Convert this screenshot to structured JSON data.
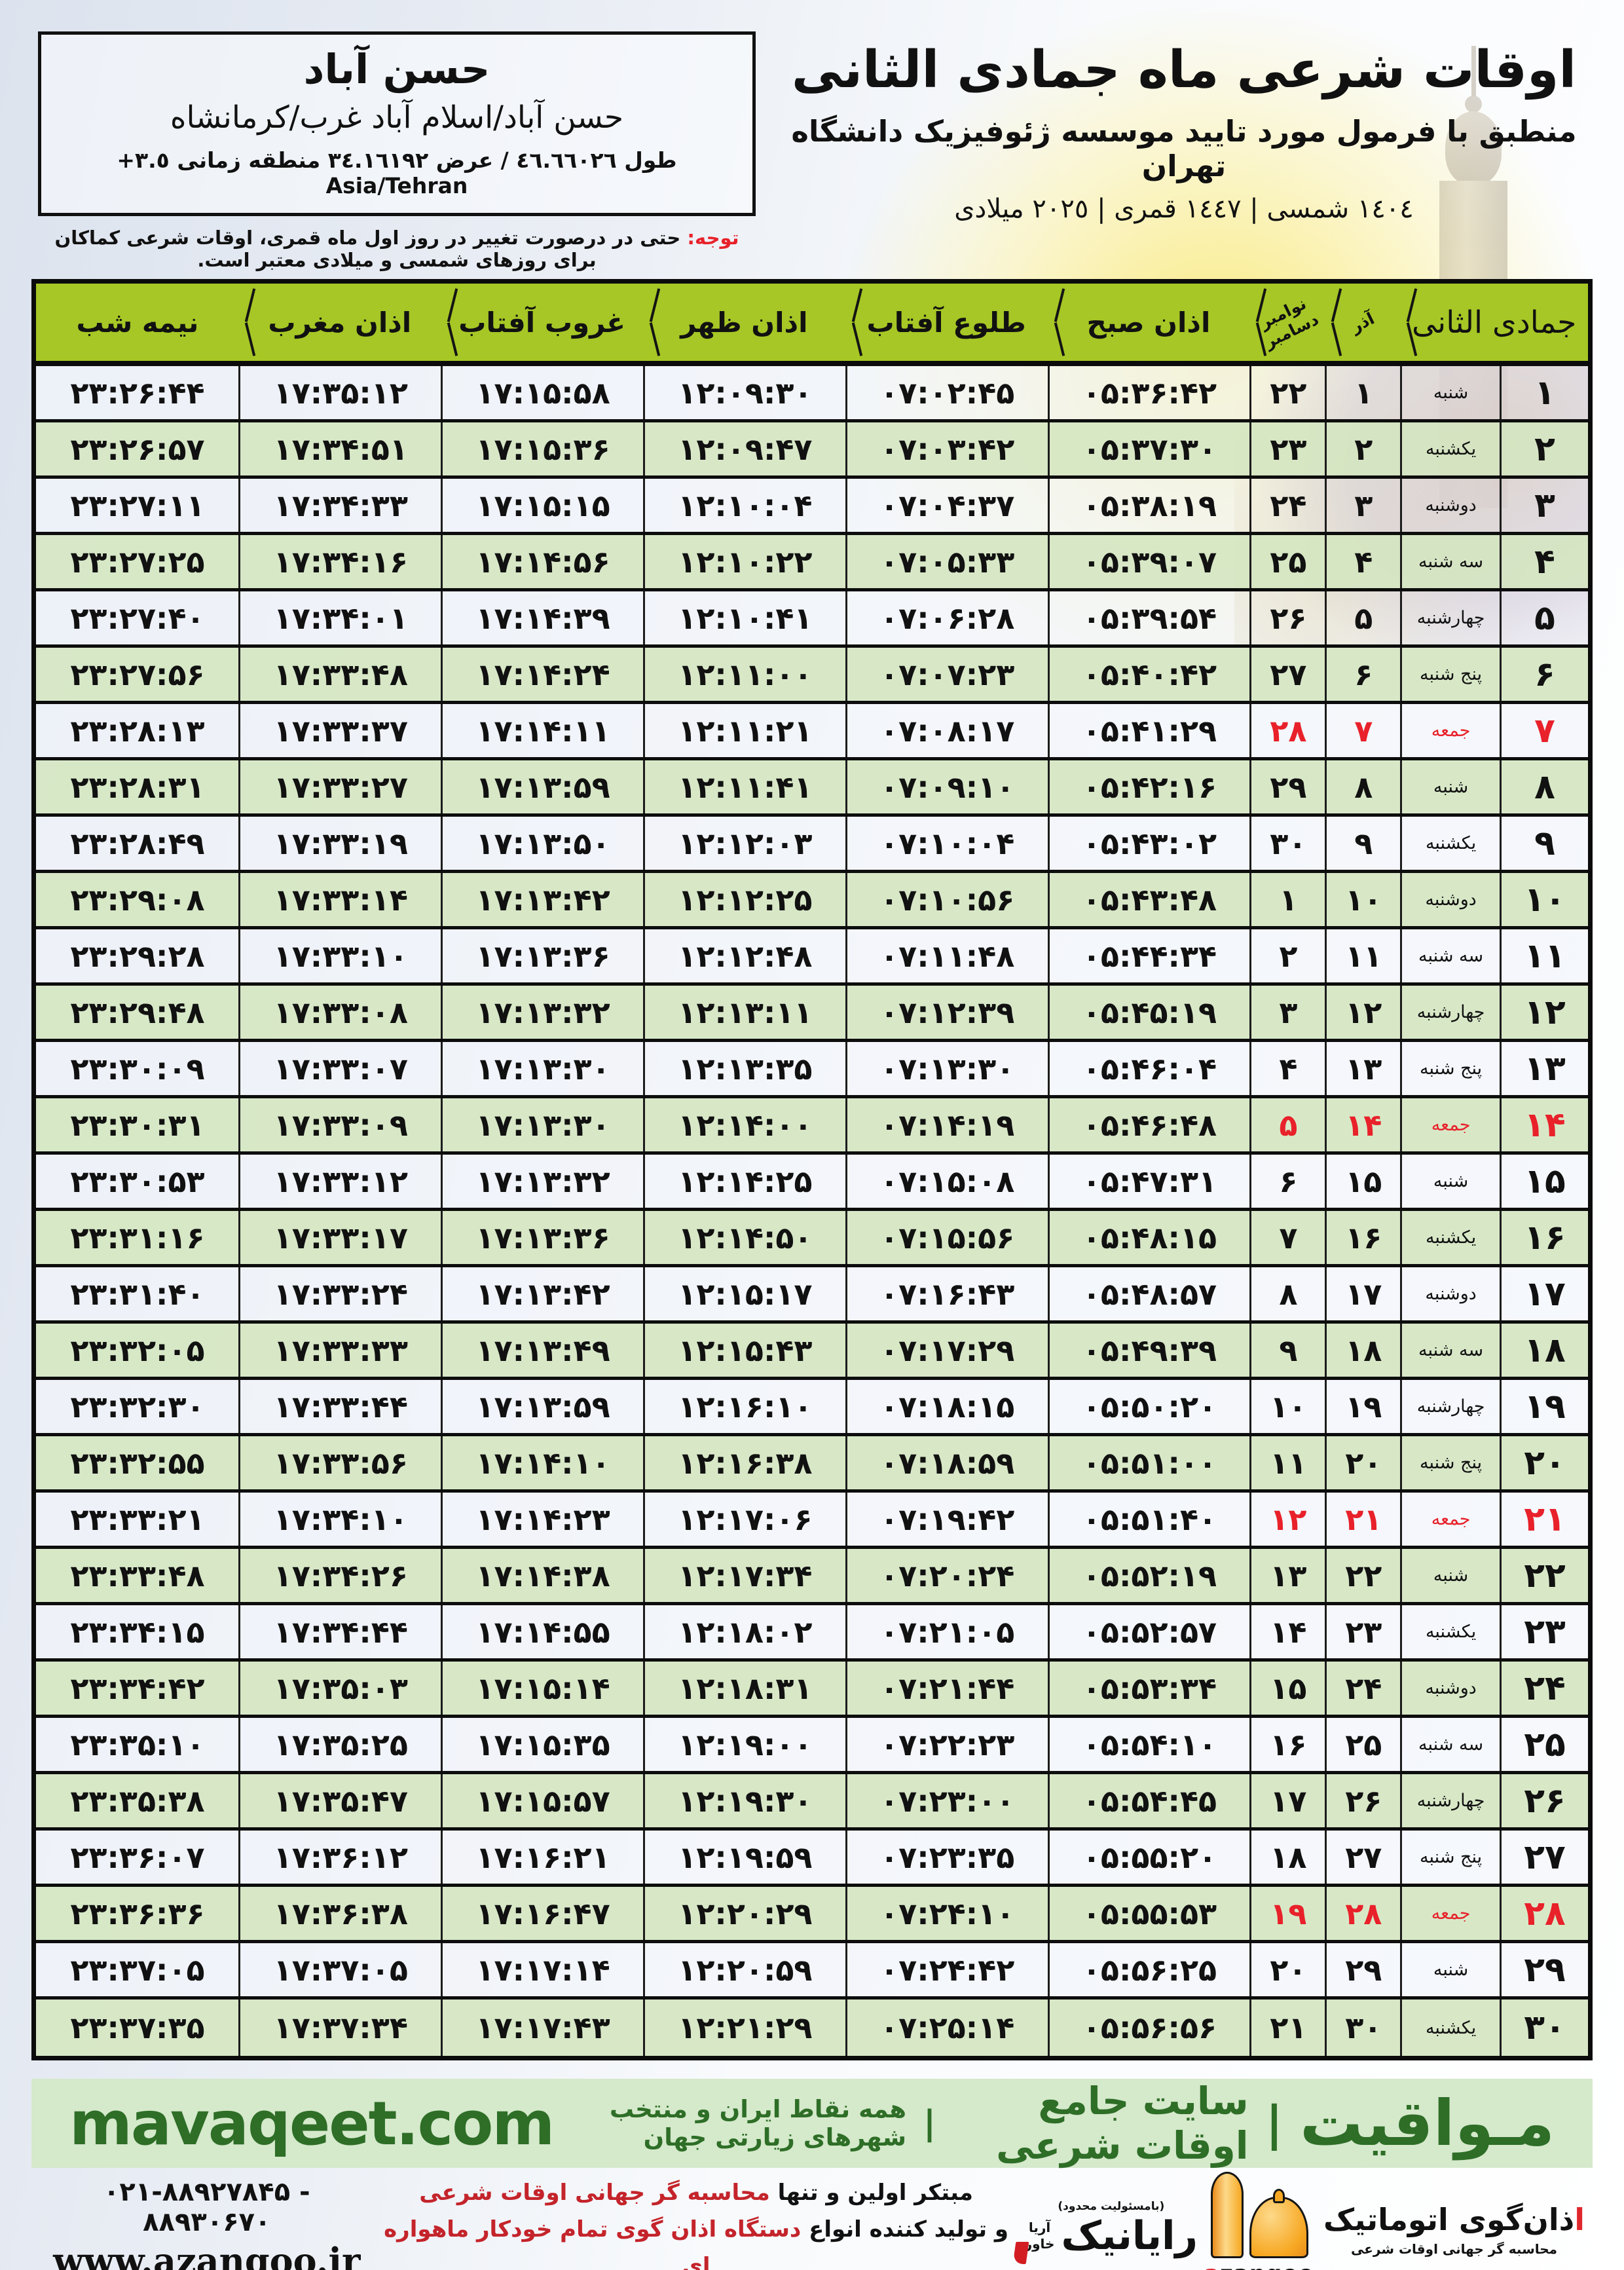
{
  "page": {
    "title": "اوقات شرعی ماه جمادی الثانی",
    "subtitle": "منطبق با فرمول مورد تایید موسسه ژئوفیزیک دانشگاه تهران",
    "dates_line": "١٤٠٤ شمسی | ١٤٤٧ قمری | ٢٠٢٥ میلادی"
  },
  "location": {
    "name": "حسن آباد",
    "region": "حسن آباد/اسلام آباد غرب/کرمانشاه",
    "coords": "طول ٤٦.٦٦٠٢٦ / عرض ٣٤.١٦١٩٢ منطقه زمانی",
    "timezone_offset": "+٣.٥",
    "timezone_name": "Asia/Tehran"
  },
  "note": {
    "label": "توجه:",
    "text": "حتی در درصورت تغییر در روز اول ماه قمری، اوقات شرعی کماکان برای روزهای شمسی و میلادی معتبر است."
  },
  "table": {
    "month_header": "جمادی الثانی",
    "col_azar": "آذر",
    "col_nov": "نوامبر",
    "col_dec": "دسامبر",
    "col_sobh": "اذان صبح",
    "col_tolu": "طلوع آفتاب",
    "col_zohr": "اذان ظهر",
    "col_ghorub": "غروب آفتاب",
    "col_maghreb": "اذان مغرب",
    "col_nimeshab": "نیمه شب",
    "rows": [
      {
        "day": "۱",
        "weekday": "شنبه",
        "azar": "۱",
        "greg": "۲۲",
        "friday": false,
        "times": [
          "۰۵:۳۶:۴۲",
          "۰۷:۰۲:۴۵",
          "۱۲:۰۹:۳۰",
          "۱۷:۱۵:۵۸",
          "۱۷:۳۵:۱۲",
          "۲۳:۲۶:۴۴"
        ]
      },
      {
        "day": "۲",
        "weekday": "یکشنبه",
        "azar": "۲",
        "greg": "۲۳",
        "friday": false,
        "times": [
          "۰۵:۳۷:۳۰",
          "۰۷:۰۳:۴۲",
          "۱۲:۰۹:۴۷",
          "۱۷:۱۵:۳۶",
          "۱۷:۳۴:۵۱",
          "۲۳:۲۶:۵۷"
        ]
      },
      {
        "day": "۳",
        "weekday": "دوشنبه",
        "azar": "۳",
        "greg": "۲۴",
        "friday": false,
        "times": [
          "۰۵:۳۸:۱۹",
          "۰۷:۰۴:۳۷",
          "۱۲:۱۰:۰۴",
          "۱۷:۱۵:۱۵",
          "۱۷:۳۴:۳۳",
          "۲۳:۲۷:۱۱"
        ]
      },
      {
        "day": "۴",
        "weekday": "سه شنبه",
        "azar": "۴",
        "greg": "۲۵",
        "friday": false,
        "times": [
          "۰۵:۳۹:۰۷",
          "۰۷:۰۵:۳۳",
          "۱۲:۱۰:۲۲",
          "۱۷:۱۴:۵۶",
          "۱۷:۳۴:۱۶",
          "۲۳:۲۷:۲۵"
        ]
      },
      {
        "day": "۵",
        "weekday": "چهارشنبه",
        "azar": "۵",
        "greg": "۲۶",
        "friday": false,
        "times": [
          "۰۵:۳۹:۵۴",
          "۰۷:۰۶:۲۸",
          "۱۲:۱۰:۴۱",
          "۱۷:۱۴:۳۹",
          "۱۷:۳۴:۰۱",
          "۲۳:۲۷:۴۰"
        ]
      },
      {
        "day": "۶",
        "weekday": "پنج شنبه",
        "azar": "۶",
        "greg": "۲۷",
        "friday": false,
        "times": [
          "۰۵:۴۰:۴۲",
          "۰۷:۰۷:۲۳",
          "۱۲:۱۱:۰۰",
          "۱۷:۱۴:۲۴",
          "۱۷:۳۳:۴۸",
          "۲۳:۲۷:۵۶"
        ]
      },
      {
        "day": "۷",
        "weekday": "جمعه",
        "azar": "۷",
        "greg": "۲۸",
        "friday": true,
        "times": [
          "۰۵:۴۱:۲۹",
          "۰۷:۰۸:۱۷",
          "۱۲:۱۱:۲۱",
          "۱۷:۱۴:۱۱",
          "۱۷:۳۳:۳۷",
          "۲۳:۲۸:۱۳"
        ]
      },
      {
        "day": "۸",
        "weekday": "شنبه",
        "azar": "۸",
        "greg": "۲۹",
        "friday": false,
        "times": [
          "۰۵:۴۲:۱۶",
          "۰۷:۰۹:۱۰",
          "۱۲:۱۱:۴۱",
          "۱۷:۱۳:۵۹",
          "۱۷:۳۳:۲۷",
          "۲۳:۲۸:۳۱"
        ]
      },
      {
        "day": "۹",
        "weekday": "یکشنبه",
        "azar": "۹",
        "greg": "۳۰",
        "friday": false,
        "times": [
          "۰۵:۴۳:۰۲",
          "۰۷:۱۰:۰۴",
          "۱۲:۱۲:۰۳",
          "۱۷:۱۳:۵۰",
          "۱۷:۳۳:۱۹",
          "۲۳:۲۸:۴۹"
        ]
      },
      {
        "day": "۱۰",
        "weekday": "دوشنبه",
        "azar": "۱۰",
        "greg": "۱",
        "friday": false,
        "times": [
          "۰۵:۴۳:۴۸",
          "۰۷:۱۰:۵۶",
          "۱۲:۱۲:۲۵",
          "۱۷:۱۳:۴۲",
          "۱۷:۳۳:۱۴",
          "۲۳:۲۹:۰۸"
        ]
      },
      {
        "day": "۱۱",
        "weekday": "سه شنبه",
        "azar": "۱۱",
        "greg": "۲",
        "friday": false,
        "times": [
          "۰۵:۴۴:۳۴",
          "۰۷:۱۱:۴۸",
          "۱۲:۱۲:۴۸",
          "۱۷:۱۳:۳۶",
          "۱۷:۳۳:۱۰",
          "۲۳:۲۹:۲۸"
        ]
      },
      {
        "day": "۱۲",
        "weekday": "چهارشنبه",
        "azar": "۱۲",
        "greg": "۳",
        "friday": false,
        "times": [
          "۰۵:۴۵:۱۹",
          "۰۷:۱۲:۳۹",
          "۱۲:۱۳:۱۱",
          "۱۷:۱۳:۳۲",
          "۱۷:۳۳:۰۸",
          "۲۳:۲۹:۴۸"
        ]
      },
      {
        "day": "۱۳",
        "weekday": "پنج شنبه",
        "azar": "۱۳",
        "greg": "۴",
        "friday": false,
        "times": [
          "۰۵:۴۶:۰۴",
          "۰۷:۱۳:۳۰",
          "۱۲:۱۳:۳۵",
          "۱۷:۱۳:۳۰",
          "۱۷:۳۳:۰۷",
          "۲۳:۳۰:۰۹"
        ]
      },
      {
        "day": "۱۴",
        "weekday": "جمعه",
        "azar": "۱۴",
        "greg": "۵",
        "friday": true,
        "times": [
          "۰۵:۴۶:۴۸",
          "۰۷:۱۴:۱۹",
          "۱۲:۱۴:۰۰",
          "۱۷:۱۳:۳۰",
          "۱۷:۳۳:۰۹",
          "۲۳:۳۰:۳۱"
        ]
      },
      {
        "day": "۱۵",
        "weekday": "شنبه",
        "azar": "۱۵",
        "greg": "۶",
        "friday": false,
        "times": [
          "۰۵:۴۷:۳۱",
          "۰۷:۱۵:۰۸",
          "۱۲:۱۴:۲۵",
          "۱۷:۱۳:۳۲",
          "۱۷:۳۳:۱۲",
          "۲۳:۳۰:۵۳"
        ]
      },
      {
        "day": "۱۶",
        "weekday": "یکشنبه",
        "azar": "۱۶",
        "greg": "۷",
        "friday": false,
        "times": [
          "۰۵:۴۸:۱۵",
          "۰۷:۱۵:۵۶",
          "۱۲:۱۴:۵۰",
          "۱۷:۱۳:۳۶",
          "۱۷:۳۳:۱۷",
          "۲۳:۳۱:۱۶"
        ]
      },
      {
        "day": "۱۷",
        "weekday": "دوشنبه",
        "azar": "۱۷",
        "greg": "۸",
        "friday": false,
        "times": [
          "۰۵:۴۸:۵۷",
          "۰۷:۱۶:۴۳",
          "۱۲:۱۵:۱۷",
          "۱۷:۱۳:۴۲",
          "۱۷:۳۳:۲۴",
          "۲۳:۳۱:۴۰"
        ]
      },
      {
        "day": "۱۸",
        "weekday": "سه شنبه",
        "azar": "۱۸",
        "greg": "۹",
        "friday": false,
        "times": [
          "۰۵:۴۹:۳۹",
          "۰۷:۱۷:۲۹",
          "۱۲:۱۵:۴۳",
          "۱۷:۱۳:۴۹",
          "۱۷:۳۳:۳۳",
          "۲۳:۳۲:۰۵"
        ]
      },
      {
        "day": "۱۹",
        "weekday": "چهارشنبه",
        "azar": "۱۹",
        "greg": "۱۰",
        "friday": false,
        "times": [
          "۰۵:۵۰:۲۰",
          "۰۷:۱۸:۱۵",
          "۱۲:۱۶:۱۰",
          "۱۷:۱۳:۵۹",
          "۱۷:۳۳:۴۴",
          "۲۳:۳۲:۳۰"
        ]
      },
      {
        "day": "۲۰",
        "weekday": "پنج شنبه",
        "azar": "۲۰",
        "greg": "۱۱",
        "friday": false,
        "times": [
          "۰۵:۵۱:۰۰",
          "۰۷:۱۸:۵۹",
          "۱۲:۱۶:۳۸",
          "۱۷:۱۴:۱۰",
          "۱۷:۳۳:۵۶",
          "۲۳:۳۲:۵۵"
        ]
      },
      {
        "day": "۲۱",
        "weekday": "جمعه",
        "azar": "۲۱",
        "greg": "۱۲",
        "friday": true,
        "times": [
          "۰۵:۵۱:۴۰",
          "۰۷:۱۹:۴۲",
          "۱۲:۱۷:۰۶",
          "۱۷:۱۴:۲۳",
          "۱۷:۳۴:۱۰",
          "۲۳:۳۳:۲۱"
        ]
      },
      {
        "day": "۲۲",
        "weekday": "شنبه",
        "azar": "۲۲",
        "greg": "۱۳",
        "friday": false,
        "times": [
          "۰۵:۵۲:۱۹",
          "۰۷:۲۰:۲۴",
          "۱۲:۱۷:۳۴",
          "۱۷:۱۴:۳۸",
          "۱۷:۳۴:۲۶",
          "۲۳:۳۳:۴۸"
        ]
      },
      {
        "day": "۲۳",
        "weekday": "یکشنبه",
        "azar": "۲۳",
        "greg": "۱۴",
        "friday": false,
        "times": [
          "۰۵:۵۲:۵۷",
          "۰۷:۲۱:۰۵",
          "۱۲:۱۸:۰۲",
          "۱۷:۱۴:۵۵",
          "۱۷:۳۴:۴۴",
          "۲۳:۳۴:۱۵"
        ]
      },
      {
        "day": "۲۴",
        "weekday": "دوشنبه",
        "azar": "۲۴",
        "greg": "۱۵",
        "friday": false,
        "times": [
          "۰۵:۵۳:۳۴",
          "۰۷:۲۱:۴۴",
          "۱۲:۱۸:۳۱",
          "۱۷:۱۵:۱۴",
          "۱۷:۳۵:۰۳",
          "۲۳:۳۴:۴۲"
        ]
      },
      {
        "day": "۲۵",
        "weekday": "سه شنبه",
        "azar": "۲۵",
        "greg": "۱۶",
        "friday": false,
        "times": [
          "۰۵:۵۴:۱۰",
          "۰۷:۲۲:۲۳",
          "۱۲:۱۹:۰۰",
          "۱۷:۱۵:۳۵",
          "۱۷:۳۵:۲۵",
          "۲۳:۳۵:۱۰"
        ]
      },
      {
        "day": "۲۶",
        "weekday": "چهارشنبه",
        "azar": "۲۶",
        "greg": "۱۷",
        "friday": false,
        "times": [
          "۰۵:۵۴:۴۵",
          "۰۷:۲۳:۰۰",
          "۱۲:۱۹:۳۰",
          "۱۷:۱۵:۵۷",
          "۱۷:۳۵:۴۷",
          "۲۳:۳۵:۳۸"
        ]
      },
      {
        "day": "۲۷",
        "weekday": "پنج شنبه",
        "azar": "۲۷",
        "greg": "۱۸",
        "friday": false,
        "times": [
          "۰۵:۵۵:۲۰",
          "۰۷:۲۳:۳۵",
          "۱۲:۱۹:۵۹",
          "۱۷:۱۶:۲۱",
          "۱۷:۳۶:۱۲",
          "۲۳:۳۶:۰۷"
        ]
      },
      {
        "day": "۲۸",
        "weekday": "جمعه",
        "azar": "۲۸",
        "greg": "۱۹",
        "friday": true,
        "times": [
          "۰۵:۵۵:۵۳",
          "۰۷:۲۴:۱۰",
          "۱۲:۲۰:۲۹",
          "۱۷:۱۶:۴۷",
          "۱۷:۳۶:۳۸",
          "۲۳:۳۶:۳۶"
        ]
      },
      {
        "day": "۲۹",
        "weekday": "شنبه",
        "azar": "۲۹",
        "greg": "۲۰",
        "friday": false,
        "times": [
          "۰۵:۵۶:۲۵",
          "۰۷:۲۴:۴۲",
          "۱۲:۲۰:۵۹",
          "۱۷:۱۷:۱۴",
          "۱۷:۳۷:۰۵",
          "۲۳:۳۷:۰۵"
        ]
      },
      {
        "day": "۳۰",
        "weekday": "یکشنبه",
        "azar": "۳۰",
        "greg": "۲۱",
        "friday": false,
        "times": [
          "۰۵:۵۶:۵۶",
          "۰۷:۲۵:۱۴",
          "۱۲:۲۱:۲۹",
          "۱۷:۱۷:۴۳",
          "۱۷:۳۷:۳۴",
          "۲۳:۳۷:۳۵"
        ]
      }
    ]
  },
  "footer": {
    "brand_fa": "مـواقیت",
    "separator": "|",
    "site_desc": "سایت جامع اوقات شرعی",
    "coverage": "همه نقاط ایران و منتخب شهرهای زیارتی جهان",
    "domain": "mavaqeet.com"
  },
  "bottom": {
    "phone": "۰۲۱-۸۸۹۲۷۸۴۵ - ۸۸۹۳۰۶۷۰",
    "website": "www.azangoo.ir",
    "promo_line1_black": "مبتکر اولین و تنها",
    "promo_line1_red": "محاسبه گر جهانی اوقات شرعی",
    "promo_line2_black": "و تولید کننده انواع",
    "promo_line2_red": "دستگاه اذان گوی تمام خودکار ماهواره ای",
    "rayanik_note": "(بامسئولیت محدود)",
    "rayanik_name": "رایانیک",
    "rayanik_sub1": "آریا",
    "rayanik_sub2": "خاور",
    "azangoo_title_red": "ا",
    "azangoo_title_rest": "ذان‌گوی اتوماتیک",
    "azangoo_sub": "محاسبه گر جهانی اوقات شرعی",
    "azangoo_latin_red": "a",
    "azangoo_latin_rest": "zangoo"
  },
  "colors": {
    "header_green": "#a6c725",
    "row_green": "#d6e7c4",
    "row_light": "#f0f4fa",
    "friday_red": "#e8212a",
    "footer_bar_bg": "#d5e9cb",
    "footer_bar_text": "#2e6e27",
    "bottom_bar_green": "#a2c414",
    "promo_red": "#c4242b"
  }
}
